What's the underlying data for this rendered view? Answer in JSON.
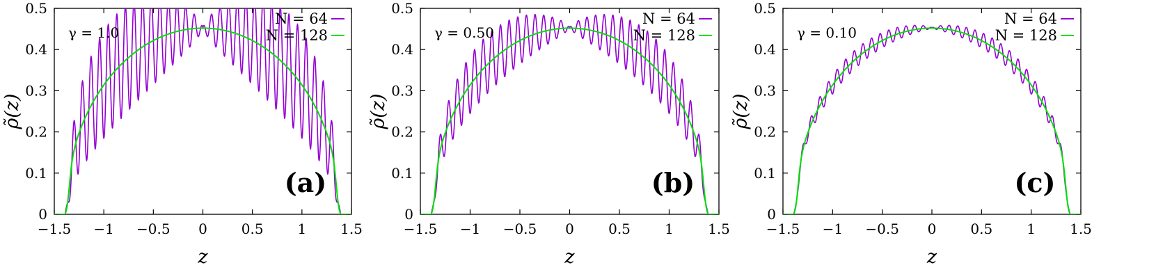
{
  "chart_data": [
    {
      "type": "line",
      "panel_label": "(a)",
      "annotation": "γ = 1.0",
      "xlabel": "z",
      "ylabel": "ρ̃(z)",
      "xlim": [
        -1.5,
        1.5
      ],
      "ylim": [
        0,
        0.5
      ],
      "xticks": [
        "−1.5",
        "−1",
        "−0.5",
        "0",
        "0.5",
        "1",
        "1.5"
      ],
      "yticks": [
        "0",
        "0.1",
        "0.2",
        "0.3",
        "0.4",
        "0.5"
      ],
      "legend_position": "top-right",
      "series": [
        {
          "name": "N = 64",
          "color": "#9400d3",
          "edge": 1.39,
          "peak": 0.453,
          "oscillations": 64,
          "ripple": 0.52,
          "onset": 0.018
        },
        {
          "name": "N = 128",
          "color": "#00e000",
          "edge": 1.39,
          "peak": 0.452,
          "oscillations": 128,
          "ripple": 0.0,
          "onset": 0.015
        }
      ]
    },
    {
      "type": "line",
      "panel_label": "(b)",
      "annotation": "γ = 0.50",
      "xlabel": "z",
      "ylabel": "ρ̃(z)",
      "xlim": [
        -1.5,
        1.5
      ],
      "ylim": [
        0,
        0.5
      ],
      "xticks": [
        "−1.5",
        "−1",
        "−0.5",
        "0",
        "0.5",
        "1",
        "1.5"
      ],
      "yticks": [
        "0",
        "0.1",
        "0.2",
        "0.3",
        "0.4",
        "0.5"
      ],
      "legend_position": "top-right",
      "series": [
        {
          "name": "N = 64",
          "color": "#9400d3",
          "edge": 1.39,
          "peak": 0.453,
          "oscillations": 64,
          "ripple": 0.28,
          "onset": 0.018
        },
        {
          "name": "N = 128",
          "color": "#00e000",
          "edge": 1.39,
          "peak": 0.452,
          "oscillations": 128,
          "ripple": 0.0,
          "onset": 0.015
        }
      ]
    },
    {
      "type": "line",
      "panel_label": "(c)",
      "annotation": "γ = 0.10",
      "xlabel": "z",
      "ylabel": "ρ̃(z)",
      "xlim": [
        -1.5,
        1.5
      ],
      "ylim": [
        0,
        0.5
      ],
      "xticks": [
        "−1.5",
        "−1",
        "−0.5",
        "0",
        "0.5",
        "1",
        "1.5"
      ],
      "yticks": [
        "0",
        "0.1",
        "0.2",
        "0.3",
        "0.4",
        "0.5"
      ],
      "legend_position": "top-right",
      "series": [
        {
          "name": "N = 64",
          "color": "#9400d3",
          "edge": 1.39,
          "peak": 0.453,
          "oscillations": 64,
          "ripple": 0.09,
          "onset": 0.018
        },
        {
          "name": "N = 128",
          "color": "#00e000",
          "edge": 1.39,
          "peak": 0.452,
          "oscillations": 128,
          "ripple": 0.0,
          "onset": 0.015
        }
      ]
    }
  ]
}
